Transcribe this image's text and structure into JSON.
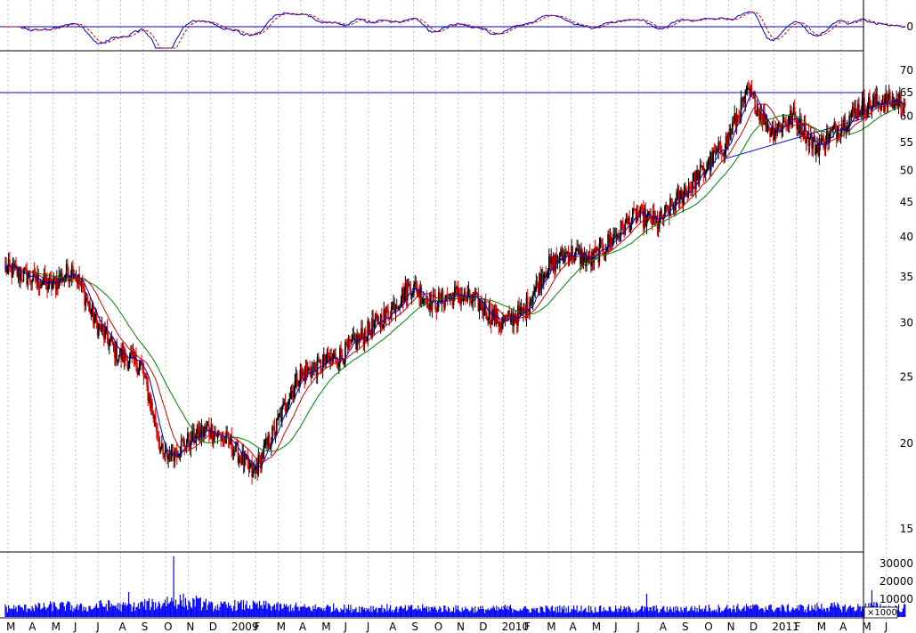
{
  "chart_data": [
    {
      "panel": "oscillator",
      "type": "line",
      "y_ticks": [
        0
      ],
      "reference_line": 0,
      "colors": {
        "signal": "#0000cc",
        "trigger": "#cc0000",
        "reference": "#0000aa"
      }
    },
    {
      "panel": "price",
      "type": "candlestick",
      "y_scale": "log",
      "ylim": [
        13.5,
        75
      ],
      "y_ticks": [
        15,
        20,
        25,
        30,
        35,
        40,
        45,
        50,
        55,
        60,
        65,
        70
      ],
      "resistance_line": 65,
      "months": [
        "M",
        "A",
        "M",
        "J",
        "J",
        "A",
        "S",
        "O",
        "N",
        "D",
        "2009",
        "F",
        "M",
        "A",
        "M",
        "J",
        "J",
        "A",
        "S",
        "O",
        "N",
        "D",
        "2010",
        "F",
        "M",
        "A",
        "M",
        "J",
        "J",
        "A",
        "S",
        "O",
        "N",
        "D",
        "2011",
        "F",
        "M",
        "A",
        "M",
        "J"
      ],
      "close_monthly": [
        36,
        35,
        34,
        36,
        30,
        27,
        26,
        19,
        20,
        21,
        20,
        18,
        21,
        25,
        26,
        27,
        29,
        31,
        34,
        32,
        33,
        32,
        30,
        31,
        36,
        38,
        37,
        40,
        43,
        42,
        46,
        50,
        55,
        65,
        57,
        60,
        54,
        58,
        62,
        63
      ],
      "moving_averages": [
        {
          "period": "short",
          "color": "#0000cc"
        },
        {
          "period": "medium",
          "color": "#cc0000"
        },
        {
          "period": "long",
          "color": "#008000"
        }
      ],
      "colors": {
        "up_candle": "#000000",
        "down_candle": "#e00000"
      }
    },
    {
      "panel": "volume",
      "type": "bar",
      "unit": "×1000",
      "y_ticks": [
        10000,
        20000,
        30000
      ],
      "ylim": [
        0,
        36000
      ],
      "bar_color": "#0000ff",
      "monthly_avg": [
        5000,
        5500,
        6000,
        5200,
        6500,
        5800,
        7000,
        9000,
        7500,
        6000,
        6500,
        6200,
        5500,
        5000,
        5200,
        4800,
        5000,
        4500,
        4800,
        4700,
        4500,
        4300,
        4800,
        4200,
        4500,
        4600,
        4400,
        4300,
        4500,
        4200,
        4600,
        4800,
        5000,
        5200,
        4800,
        5000,
        5500,
        5200,
        5800,
        5000
      ],
      "spikes": [
        [
          7,
          34000
        ],
        [
          5,
          14000
        ],
        [
          8,
          12000
        ],
        [
          28,
          13000
        ],
        [
          38,
          15000
        ]
      ]
    }
  ]
}
